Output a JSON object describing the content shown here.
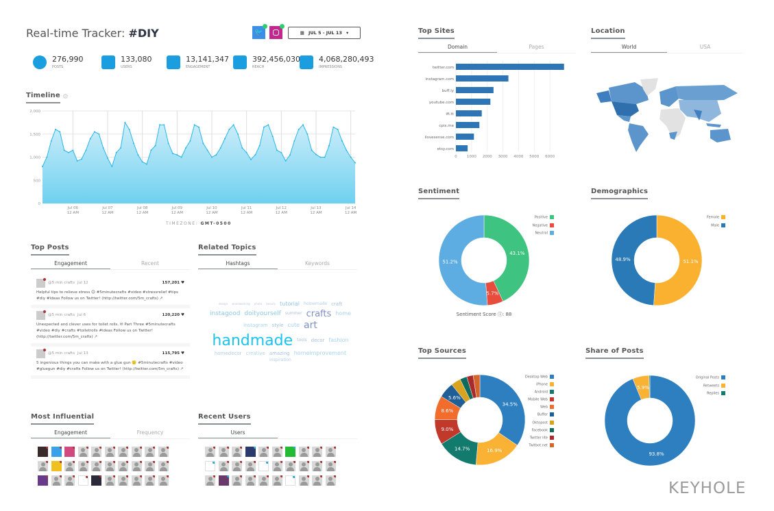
{
  "header": {
    "title_prefix": "Real-time Tracker: ",
    "title_tag": "#DIY",
    "date_range": "JUL 5 - JUL 13",
    "twitter_color": "#3b8fe6",
    "instagram_color": "#c0278f"
  },
  "stats": [
    {
      "value": "276,990",
      "label": "Posts",
      "icon": "speech-bubble-icon"
    },
    {
      "value": "133,080",
      "label": "Users",
      "icon": "user-icon"
    },
    {
      "value": "13,141,347",
      "label": "Engagement",
      "icon": "group-icon"
    },
    {
      "value": "392,456,030",
      "label": "Reach",
      "icon": "sitemap-icon"
    },
    {
      "value": "4,068,280,493",
      "label": "Impressions",
      "icon": "microphone-icon"
    }
  ],
  "timeline": {
    "heading": "Timeline",
    "timezone_label": "TIMEZONE:",
    "timezone": "GMT-0500",
    "chart_data": {
      "type": "area",
      "xlabel": "",
      "ylabel": "",
      "ylim": [
        0,
        2000
      ],
      "yticks": [
        "0",
        "500",
        "1,000",
        "1,500",
        "2,000"
      ],
      "xticks": [
        [
          "Jul 06",
          "12 AM"
        ],
        [
          "Jul 07",
          "12 AM"
        ],
        [
          "Jul 08",
          "12 AM"
        ],
        [
          "Jul 09",
          "12 AM"
        ],
        [
          "Jul 10",
          "12 AM"
        ],
        [
          "Jul 11",
          "12 AM"
        ],
        [
          "Jul 12",
          "12 AM"
        ],
        [
          "Jul 13",
          "12 AM"
        ],
        [
          "Jul 14",
          "12 AM"
        ]
      ],
      "x_start": "Jul 05 03:00",
      "x_step_hours": 3,
      "values": [
        800,
        1000,
        1350,
        1600,
        1550,
        1150,
        1100,
        1150,
        920,
        960,
        1150,
        1400,
        1550,
        1500,
        1200,
        980,
        800,
        1100,
        1200,
        1750,
        1600,
        1300,
        1050,
        900,
        850,
        1150,
        1250,
        1700,
        1700,
        1300,
        1080,
        1050,
        1000,
        1200,
        1350,
        1700,
        1650,
        1300,
        1150,
        1000,
        1050,
        1200,
        1400,
        1600,
        1700,
        1500,
        1200,
        1100,
        950,
        1050,
        1250,
        1650,
        1700,
        1450,
        1150,
        1100,
        920,
        1050,
        1350,
        1600,
        1700,
        1500,
        1150,
        1060,
        1000,
        1000,
        1250,
        1650,
        1600,
        1350,
        1150,
        1000,
        880
      ],
      "color": "#29b6e8"
    }
  },
  "top_posts": {
    "heading": "Top Posts",
    "tabs": [
      "Engagement",
      "Recent"
    ],
    "posts": [
      {
        "user": "@5 min crafts",
        "date": "Jul 12",
        "count": "157,201 ♥",
        "text": "Helpful tips to relieve stress 😊 #5minutecrafts #video #stressrelief #tips #diy #ideas Follow us on Twitter! (http://twitter.com/5m_crafts) ↗"
      },
      {
        "user": "@5 min crafts",
        "date": "Jul 6",
        "count": "120,220 ♥",
        "text": "Unexpected and clever uses for toilet rolls. ✉ Part Three #5minutecrafts #video #diy #crafts #toiletrolls #ideas Follow us on Twitter! (http://twitter.com/5m_crafts) ↗"
      },
      {
        "user": "@5 min crafts",
        "date": "Jul 13",
        "count": "115,795 ♥",
        "text": "5 ingenious things you can make with a glue gun 🙂 #5minutecrafts #video #gluegun #diy #crafts Follow us on Twitter! (http://twitter.com/5m_crafts) ↗"
      }
    ]
  },
  "related_topics": {
    "heading": "Related Topics",
    "tabs": [
      "Hashtags",
      "Keywords"
    ],
    "words": [
      {
        "t": "handmade",
        "w": 22,
        "c": "#1cc3ef"
      },
      {
        "t": "crafts",
        "w": 13,
        "c": "#7e8fc4"
      },
      {
        "t": "art",
        "w": 14,
        "c": "#7e8fc4"
      },
      {
        "t": "instagood",
        "w": 9,
        "c": "#8fc7e6"
      },
      {
        "t": "doityourself",
        "w": 9,
        "c": "#8fc7e6"
      },
      {
        "t": "tutorial",
        "w": 8,
        "c": "#8fc7e6"
      },
      {
        "t": "home",
        "w": 8,
        "c": "#a6d2ee"
      },
      {
        "t": "instagram",
        "w": 7,
        "c": "#a6d2ee"
      },
      {
        "t": "cute",
        "w": 8,
        "c": "#a6d2ee"
      },
      {
        "t": "style",
        "w": 7,
        "c": "#a6c0de"
      },
      {
        "t": "fashion",
        "w": 8,
        "c": "#a6d2ee"
      },
      {
        "t": "homeimprovement",
        "w": 8,
        "c": "#a6d2ee"
      },
      {
        "t": "homedecor",
        "w": 7,
        "c": "#b0cde6"
      },
      {
        "t": "creative",
        "w": 7,
        "c": "#b0d8ee"
      },
      {
        "t": "amazing",
        "w": 7,
        "c": "#a6c0de"
      },
      {
        "t": "decor",
        "w": 7,
        "c": "#a6c0de"
      },
      {
        "t": "tools",
        "w": 6,
        "c": "#a6c0de"
      },
      {
        "t": "inspiration",
        "w": 6,
        "c": "#b0cde6"
      },
      {
        "t": "craft",
        "w": 7,
        "c": "#a6c0de"
      },
      {
        "t": "homemade",
        "w": 6,
        "c": "#b0cde6"
      },
      {
        "t": "summer",
        "w": 6,
        "c": "#b0c0de"
      },
      {
        "t": "woodworking",
        "w": 4,
        "c": "#c0c8e0"
      },
      {
        "t": "design",
        "w": 4,
        "c": "#c0c8e0"
      },
      {
        "t": "photo",
        "w": 4,
        "c": "#c0c8e0"
      },
      {
        "t": "beauty",
        "w": 4,
        "c": "#c0c8e0"
      }
    ]
  },
  "influential": {
    "heading": "Most Influential",
    "tabs": [
      "Engagement",
      "Frequency"
    ],
    "avatars": [
      "#3a2a2a",
      "#3aa0e8",
      "#d04a80",
      "",
      "",
      "",
      "",
      "",
      "",
      "",
      "",
      "#f0c020",
      "",
      "",
      "",
      "",
      "",
      "",
      "",
      "",
      "#6a3a8a",
      "",
      "",
      "raw",
      "#2a2a3a",
      "",
      "",
      "",
      "",
      ""
    ]
  },
  "recent_users": {
    "heading": "Recent Users",
    "tabs": [
      "Users"
    ],
    "avatars": [
      "",
      "",
      "",
      "#2a3a6a",
      "",
      "",
      "#22bb33",
      "",
      "",
      "",
      "sketch",
      "",
      "",
      "",
      "sketch2",
      "",
      "",
      "",
      "",
      "",
      "",
      "#6a3a6a",
      "",
      "",
      "",
      "",
      "box",
      "",
      "",
      ""
    ]
  },
  "top_sites": {
    "heading": "Top Sites",
    "tabs": [
      "Domain",
      "Pages"
    ],
    "chart_data": {
      "type": "bar",
      "orientation": "horizontal",
      "categories": [
        "twitter.com",
        "instagram.com",
        "buff.ly",
        "youtube.com",
        "ift.tt",
        "cpix.me",
        "ilovesense.com",
        "etsy.com"
      ],
      "values": [
        6900,
        3350,
        2400,
        2200,
        1650,
        1500,
        1150,
        750
      ],
      "xlim": [
        0,
        7000
      ],
      "xticks": [
        "0",
        "1000",
        "2000",
        "3000",
        "4000",
        "5000",
        "6000"
      ],
      "color": "#2e75b6"
    }
  },
  "location": {
    "heading": "Location",
    "tabs": [
      "World",
      "USA"
    ],
    "colors": {
      "high": "#2f6fae",
      "mid": "#5b95cc",
      "low": "#8fb6dd",
      "none": "#e2e2e2"
    }
  },
  "sentiment": {
    "heading": "Sentiment",
    "score_label": "Sentiment Score ⓘ: 88",
    "chart_data": {
      "type": "pie",
      "donut": true,
      "categories": [
        "Positive",
        "Negative",
        "Neutral"
      ],
      "values": [
        43.1,
        5.7,
        51.2
      ],
      "labels": [
        "43.1%",
        "5.7%",
        "51.2%"
      ],
      "colors": [
        "#3fc380",
        "#e74c3c",
        "#5dade2"
      ],
      "legend": "top-right"
    }
  },
  "demographics": {
    "heading": "Demographics",
    "chart_data": {
      "type": "pie",
      "donut": true,
      "categories": [
        "Female",
        "Male"
      ],
      "values": [
        51.1,
        48.9
      ],
      "labels": [
        "51.1%",
        "48.9%"
      ],
      "colors": [
        "#fbb130",
        "#2a7ab8"
      ],
      "legend": "top-right"
    }
  },
  "top_sources": {
    "heading": "Top Sources",
    "chart_data": {
      "type": "pie",
      "donut": true,
      "categories": [
        "Desktop Web",
        "iPhone",
        "Android",
        "Mobile Web",
        "Web",
        "Buffer",
        "Oktopost",
        "Facebook",
        "Twitter lite",
        "Twitbot.net"
      ],
      "values": [
        34.5,
        16.9,
        14.7,
        9.0,
        8.6,
        5.6,
        3.5,
        2.5,
        2.3,
        2.4
      ],
      "labels": [
        "34.5%",
        "16.9%",
        "14.7%",
        "9.0%",
        "8.6%",
        "5.6%",
        "",
        "",
        "",
        ""
      ],
      "colors": [
        "#2e7fbf",
        "#f9b233",
        "#137a6e",
        "#c0392b",
        "#f26c2c",
        "#1f5f96",
        "#d9a21f",
        "#0f6b5e",
        "#a82a2a",
        "#d4662b"
      ],
      "legend": "right"
    }
  },
  "share_of_posts": {
    "heading": "Share of Posts",
    "chart_data": {
      "type": "pie",
      "donut": true,
      "categories": [
        "Original Posts",
        "Retweets",
        "Replies"
      ],
      "values": [
        93.8,
        5.9,
        0.3
      ],
      "labels": [
        "93.8%",
        "5.9%",
        ""
      ],
      "colors": [
        "#2e7fbf",
        "#f9b233",
        "#137a6e"
      ],
      "legend": "top-right"
    }
  },
  "brand": {
    "logo_text": "KEYHOLE"
  }
}
